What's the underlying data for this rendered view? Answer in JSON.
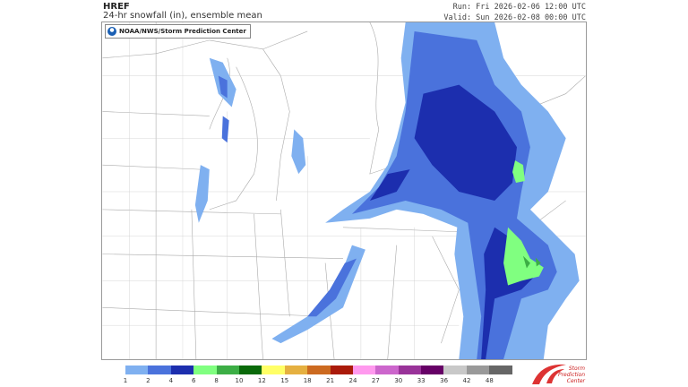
{
  "header": {
    "model": "HREF",
    "field": "24-hr snowfall (in), ensemble mean",
    "run": "Run: Fri 2026-02-06 12:00 UTC",
    "valid": "Valid: Sun 2026-02-08 00:00 UTC"
  },
  "map": {
    "credit": "NOAA/NWS/Storm Prediction Center",
    "credit_icon": "noaa-logo-icon"
  },
  "colorbar": {
    "unit": "in",
    "colors": [
      "#7fb0f0",
      "#4a72dc",
      "#1c2eae",
      "#80ff80",
      "#3cae45",
      "#0a6a0a",
      "#ffff66",
      "#e5b040",
      "#cc6a20",
      "#aa1a0a",
      "#ff99ee",
      "#cc66cc",
      "#993399",
      "#660066",
      "#c8c8c8",
      "#999999",
      "#666666"
    ],
    "labels": [
      "1",
      "2",
      "4",
      "6",
      "8",
      "10",
      "12",
      "15",
      "18",
      "21",
      "24",
      "27",
      "30",
      "33",
      "36",
      "42",
      "48"
    ]
  },
  "logo": {
    "text": "Storm Prediction Center",
    "icon": "spc-logo-icon"
  }
}
